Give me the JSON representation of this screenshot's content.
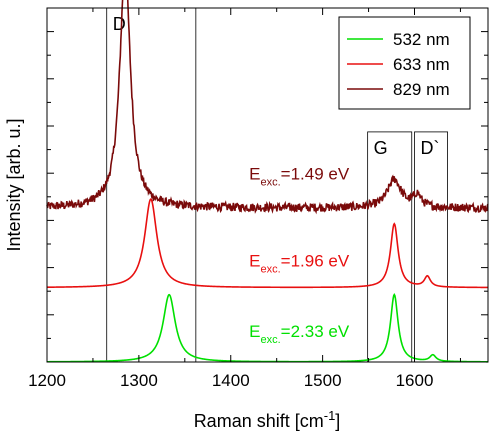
{
  "chart_data": {
    "type": "line",
    "xlabel": "Raman shift [cm",
    "xlabel_sup": "-1",
    "xlabel_end": "]",
    "ylabel": "Intensity [arb. u.]",
    "xlim": [
      1200,
      1680
    ],
    "ylim": [
      0,
      1
    ],
    "x_ticks": [
      1200,
      1300,
      1400,
      1500,
      1600
    ],
    "x_tick_labels": [
      "1200",
      "1300",
      "1400",
      "1500",
      "1600"
    ],
    "y_tick_labels_shown": false,
    "grid": false,
    "legend_position": "top-right",
    "series": [
      {
        "name": "532 nm",
        "color": "#00e000",
        "offset": 0.0,
        "peaks": [
          {
            "x": 1333,
            "h": 0.19,
            "w": 8
          },
          {
            "x": 1578,
            "h": 0.19,
            "w": 5
          },
          {
            "x": 1620,
            "h": 0.018,
            "w": 4
          }
        ],
        "noise": 0.0
      },
      {
        "name": "633 nm",
        "color": "#e81010",
        "offset": 0.21,
        "peaks": [
          {
            "x": 1313,
            "h": 0.25,
            "w": 8
          },
          {
            "x": 1578,
            "h": 0.18,
            "w": 5
          },
          {
            "x": 1614,
            "h": 0.03,
            "w": 4
          }
        ],
        "noise": 0.0
      },
      {
        "name": "829 nm",
        "color": "#7a0a0a",
        "offset": 0.435,
        "peaks": [
          {
            "x": 1285,
            "h": 0.68,
            "w": 7
          },
          {
            "x": 1578,
            "h": 0.08,
            "w": 9
          },
          {
            "x": 1603,
            "h": 0.035,
            "w": 5
          }
        ],
        "noise": 0.012
      }
    ],
    "regions": [
      {
        "label": "D",
        "x_from": 1265,
        "x_to": 1362,
        "y_from": 0.0,
        "y_to": 1.0
      },
      {
        "label": "G",
        "x_from": 1549,
        "x_to": 1597,
        "y_from": 0.0,
        "y_to": 0.65
      },
      {
        "label": "D`",
        "x_from": 1600,
        "x_to": 1636,
        "y_from": 0.0,
        "y_to": 0.65
      }
    ],
    "annotations": [
      {
        "text": "E",
        "sub": "exc.",
        "rest": "=1.49 eV",
        "color": "#7a0a0a",
        "x": 1420,
        "y": 0.515
      },
      {
        "text": "E",
        "sub": "exc.",
        "rest": "=1.96 eV",
        "color": "#e81010",
        "x": 1420,
        "y": 0.27
      },
      {
        "text": "E",
        "sub": "exc.",
        "rest": "=2.33 eV",
        "color": "#00e000",
        "x": 1420,
        "y": 0.07
      }
    ]
  }
}
